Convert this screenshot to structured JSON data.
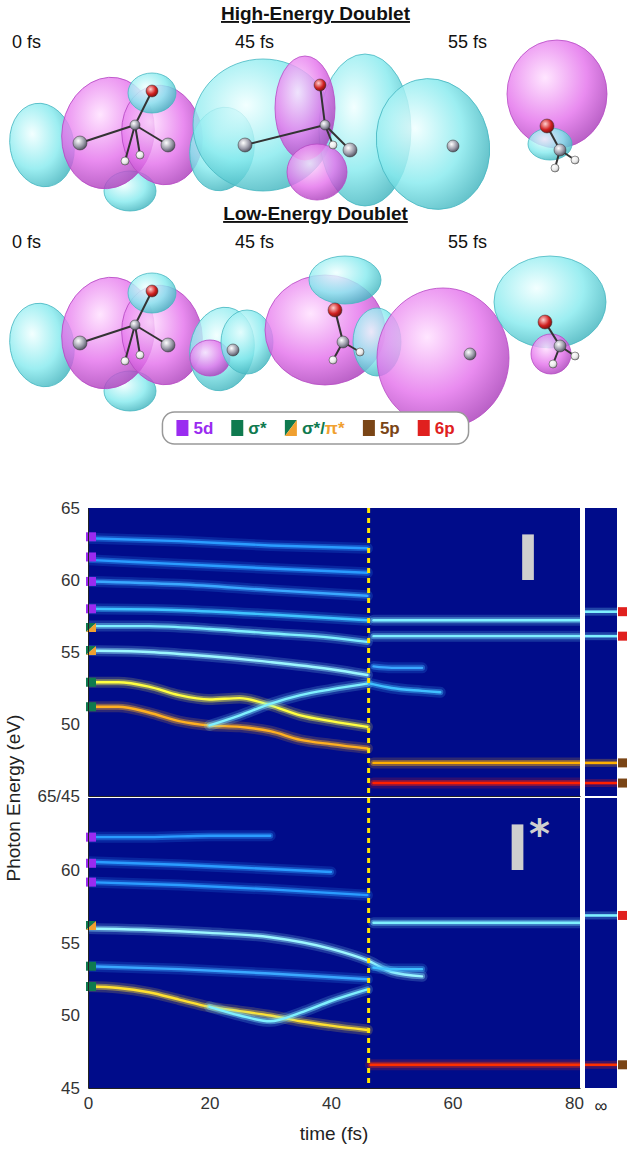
{
  "figure": {
    "rows": [
      {
        "title": "High-Energy Doublet",
        "times": [
          "0 fs",
          "45 fs",
          "55 fs"
        ]
      },
      {
        "title": "Low-Energy Doublet",
        "times": [
          "0 fs",
          "45 fs",
          "55 fs"
        ]
      }
    ]
  },
  "legend_items": [
    {
      "label": "5d",
      "color": "#9a2bf0"
    },
    {
      "label": "σ*",
      "color": "#0f7a4f"
    },
    {
      "label": "σ*/π*",
      "colors": [
        "#0f7a4f",
        "#f0a030"
      ]
    },
    {
      "label": "5p",
      "color": "#7a4516"
    },
    {
      "label": "6p",
      "color": "#e0201e"
    }
  ],
  "chart_data": [
    {
      "type": "line",
      "panel_label": "I",
      "xlim": [
        0,
        81
      ],
      "xticks": [
        0,
        20,
        40,
        60,
        80
      ],
      "ylim": [
        45,
        65
      ],
      "yticks": [
        {
          "value": 45,
          "label": "65/45"
        },
        50,
        55,
        60,
        65
      ],
      "tick_labels": "y",
      "grid": false,
      "vline": 46.2,
      "series": [
        {
          "x": [
            0,
            15,
            30,
            46
          ],
          "values": [
            62.9,
            62.7,
            62.4,
            62.2
          ],
          "color": "#2a9cff"
        },
        {
          "x": [
            0,
            15,
            30,
            46
          ],
          "values": [
            61.4,
            61.1,
            60.8,
            60.5
          ],
          "color": "#2a9cff"
        },
        {
          "x": [
            0,
            15,
            30,
            46
          ],
          "values": [
            59.9,
            59.7,
            59.3,
            58.9
          ],
          "color": "#3aa8ff"
        },
        {
          "x": [
            0,
            15,
            30,
            46
          ],
          "values": [
            58.0,
            57.9,
            57.6,
            57.2
          ],
          "color": "#3fc4ff"
        },
        {
          "x": [
            0,
            10,
            20,
            30,
            40,
            46
          ],
          "values": [
            56.8,
            56.8,
            56.6,
            56.3,
            56.0,
            55.7
          ],
          "color": "#7ff0ff"
        },
        {
          "x": [
            0,
            10,
            20,
            30,
            40,
            46
          ],
          "values": [
            55.1,
            55.0,
            54.7,
            54.3,
            53.8,
            53.4
          ],
          "color": "#9cf7ff"
        },
        {
          "x": [
            0,
            5,
            10,
            15,
            20,
            25,
            30,
            35,
            40,
            46
          ],
          "values": [
            52.9,
            52.9,
            52.6,
            52.0,
            51.7,
            51.8,
            51.3,
            50.6,
            50.2,
            49.8
          ],
          "color": "#ffff40"
        },
        {
          "x": [
            0,
            5,
            10,
            15,
            20,
            25,
            30,
            35,
            40,
            46
          ],
          "values": [
            51.2,
            51.2,
            50.8,
            50.2,
            49.9,
            49.8,
            49.5,
            48.9,
            48.6,
            48.3
          ],
          "color": "#ffb020"
        },
        {
          "x": [
            20,
            25,
            30,
            35,
            40,
            46
          ],
          "values": [
            49.9,
            50.6,
            51.4,
            52.0,
            52.4,
            52.8
          ],
          "color": "#7ff0ff"
        },
        {
          "x": [
            47,
            60,
            70,
            81
          ],
          "values": [
            57.2,
            57.2,
            57.2,
            57.2
          ],
          "color": "#7ff0ff"
        },
        {
          "x": [
            47,
            60,
            70,
            81
          ],
          "values": [
            56.1,
            56.1,
            56.1,
            56.1
          ],
          "color": "#7ff0ff"
        },
        {
          "x": [
            46.5,
            50,
            55,
            58
          ],
          "values": [
            52.8,
            52.5,
            52.3,
            52.2
          ],
          "color": "#40c0ff"
        },
        {
          "x": [
            47,
            50,
            55
          ],
          "values": [
            54.0,
            53.9,
            53.9
          ],
          "color": "#3aa8ff"
        },
        {
          "x": [
            47,
            60,
            70,
            81
          ],
          "values": [
            47.3,
            47.3,
            47.3,
            47.3
          ],
          "color": "#ffb000"
        },
        {
          "x": [
            47,
            60,
            70,
            81
          ],
          "values": [
            45.9,
            45.9,
            45.9,
            45.9
          ],
          "color": "#ff2000"
        }
      ],
      "infinity": {
        "values": [
          57.8,
          56.1,
          47.3,
          45.9
        ],
        "colors": [
          "#7ff0ff",
          "#7ff0ff",
          "#ffb000",
          "#ff2000"
        ]
      },
      "state_markers": {
        "left": [
          {
            "value": 63.0,
            "state": "5d"
          },
          {
            "value": 61.6,
            "state": "5d"
          },
          {
            "value": 59.9,
            "state": "5d"
          },
          {
            "value": 58.0,
            "state": "5d"
          },
          {
            "value": 56.7,
            "state": "σ*/π*"
          },
          {
            "value": 55.1,
            "state": "σ*/π*"
          },
          {
            "value": 52.9,
            "state": "σ*"
          },
          {
            "value": 51.2,
            "state": "σ*"
          }
        ],
        "right": [
          {
            "value": 57.8,
            "state": "6p"
          },
          {
            "value": 56.1,
            "state": "6p"
          },
          {
            "value": 47.3,
            "state": "5p"
          },
          {
            "value": 45.9,
            "state": "5p"
          }
        ]
      }
    },
    {
      "type": "line",
      "panel_label": "I*",
      "xlabel": "time (fs)",
      "ylabel": "Photon Energy (eV)",
      "xlim": [
        0,
        81
      ],
      "xticks": [
        0,
        20,
        40,
        60,
        80
      ],
      "ylim": [
        45,
        65
      ],
      "yticks": [
        45,
        50,
        55,
        60
      ],
      "grid": false,
      "vline": 46.2,
      "series": [
        {
          "x": [
            0,
            10,
            20,
            30
          ],
          "values": [
            62.3,
            62.3,
            62.4,
            62.4
          ],
          "color": "#2a9cff"
        },
        {
          "x": [
            0,
            15,
            30,
            40
          ],
          "values": [
            60.6,
            60.4,
            60.1,
            59.9
          ],
          "color": "#2a9cff"
        },
        {
          "x": [
            0,
            15,
            30,
            46
          ],
          "values": [
            59.2,
            59.0,
            58.7,
            58.3
          ],
          "color": "#2a9cff"
        },
        {
          "x": [
            0,
            10,
            20,
            30,
            40,
            46,
            50,
            55
          ],
          "values": [
            56.0,
            55.9,
            55.7,
            55.4,
            54.6,
            53.8,
            53.0,
            52.7
          ],
          "color": "#9cf7ff"
        },
        {
          "x": [
            0,
            15,
            30,
            46
          ],
          "values": [
            53.4,
            53.2,
            52.9,
            52.5
          ],
          "color": "#3aa8ff"
        },
        {
          "x": [
            0,
            5,
            10,
            15,
            20,
            25,
            30,
            35,
            40,
            46
          ],
          "values": [
            52.0,
            51.9,
            51.6,
            51.1,
            50.6,
            50.3,
            50.0,
            49.6,
            49.3,
            49.0
          ],
          "color": "#ffe030"
        },
        {
          "x": [
            20,
            25,
            30,
            35,
            40,
            46
          ],
          "values": [
            50.6,
            50.0,
            49.6,
            50.2,
            51.0,
            51.8
          ],
          "color": "#7ff0ff"
        },
        {
          "x": [
            47,
            60,
            70,
            81
          ],
          "values": [
            56.4,
            56.4,
            56.4,
            56.4
          ],
          "color": "#7ff0ff"
        },
        {
          "x": [
            47,
            50,
            55
          ],
          "values": [
            53.3,
            53.2,
            53.2
          ],
          "color": "#40c0ff"
        },
        {
          "x": [
            46.5,
            60,
            70,
            81
          ],
          "values": [
            46.6,
            46.6,
            46.6,
            46.6
          ],
          "color": "#ff3000"
        }
      ],
      "infinity": {
        "label": "∞",
        "values": [
          56.9,
          46.6
        ],
        "colors": [
          "#7ff0ff",
          "#ff3000"
        ]
      },
      "state_markers": {
        "left": [
          {
            "value": 62.3,
            "state": "5d"
          },
          {
            "value": 60.5,
            "state": "5d"
          },
          {
            "value": 59.2,
            "state": "5d"
          },
          {
            "value": 56.2,
            "state": "σ*/π*"
          },
          {
            "value": 53.4,
            "state": "σ*"
          },
          {
            "value": 52.0,
            "state": "σ*"
          }
        ],
        "right": [
          {
            "value": 56.9,
            "state": "6p"
          },
          {
            "value": 46.6,
            "state": "5p"
          }
        ]
      }
    }
  ]
}
